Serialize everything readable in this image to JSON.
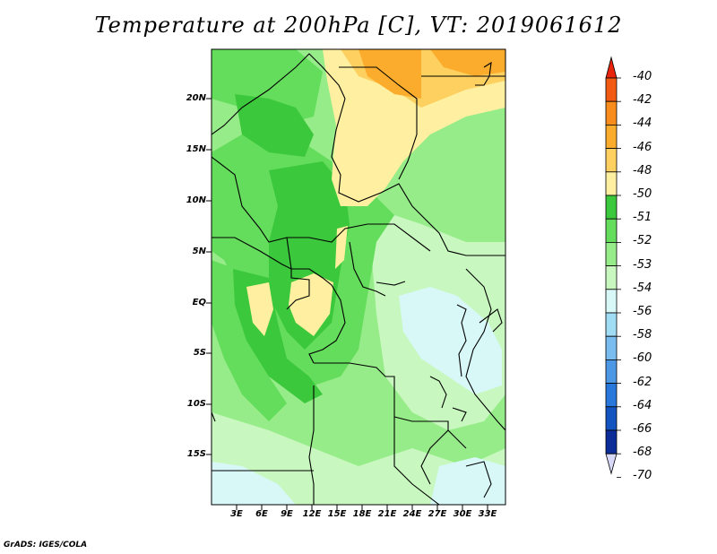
{
  "title": "Temperature at 200hPa [C], VT: 2019061612",
  "y_axis_labels": [
    "20N",
    "15N",
    "10N",
    "5N",
    "EQ",
    "5S",
    "10S",
    "15S"
  ],
  "x_axis_labels": [
    "3E",
    "6E",
    "9E",
    "12E",
    "15E",
    "18E",
    "21E",
    "24E",
    "27E",
    "30E",
    "33E"
  ],
  "colorbar": {
    "labels": [
      "-40",
      "-42",
      "-44",
      "-46",
      "-48",
      "-50",
      "-51",
      "-52",
      "-53",
      "-54",
      "-56",
      "-58",
      "-60",
      "-62",
      "-64",
      "-66",
      "-68",
      "-70"
    ],
    "colors": [
      "#e8240c",
      "#f25a14",
      "#f88c1c",
      "#fbac2c",
      "#fdd060",
      "#fef0a0",
      "#3cc83c",
      "#64dc5c",
      "#96ec88",
      "#c8f8c0",
      "#d8f8f8",
      "#a0dcf4",
      "#78bcf0",
      "#4c98e4",
      "#2878dc",
      "#1454c0",
      "#0c2c98",
      "#080c58"
    ]
  },
  "credit": "GrADS: IGES/COLA"
}
